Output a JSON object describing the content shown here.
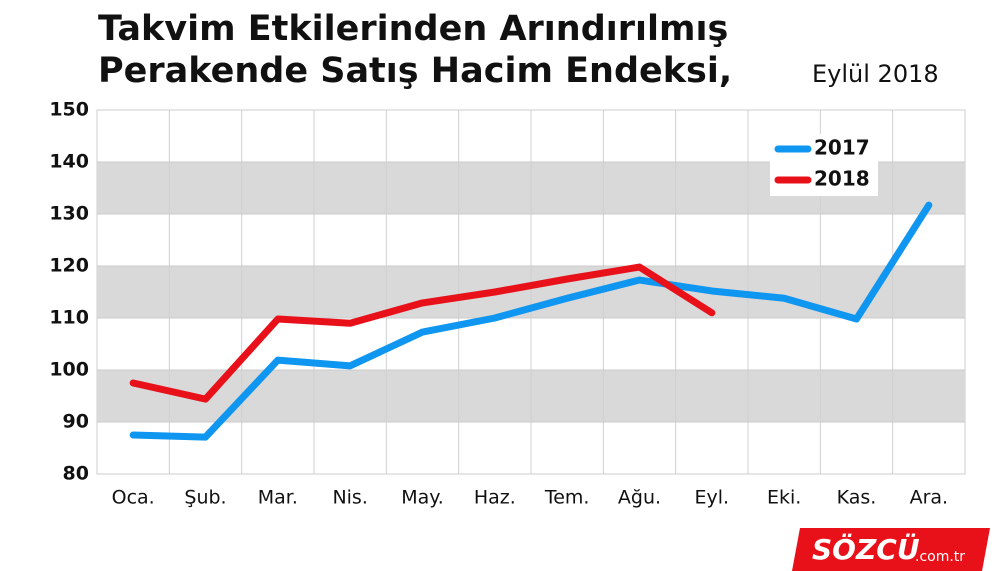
{
  "chart_data": {
    "type": "line",
    "title": [
      "Takvim Etkilerinden Arındırılmış",
      "Perakende Satış Hacim Endeksi,"
    ],
    "subtitle": "Eylül 2018",
    "categories": [
      "Oca.",
      "Şub.",
      "Mar.",
      "Nis.",
      "May.",
      "Haz.",
      "Tem.",
      "Ağu.",
      "Eyl.",
      "Eki.",
      "Kas.",
      "Ara."
    ],
    "series": [
      {
        "name": "2017",
        "color": "#0f96f0",
        "values": [
          87.5,
          87.1,
          101.9,
          100.8,
          107.3,
          110,
          113.8,
          117.3,
          115.2,
          113.8,
          109.8,
          131.7
        ]
      },
      {
        "name": "2018",
        "color": "#e8111a",
        "values": [
          97.5,
          94.4,
          109.8,
          109,
          112.9,
          115,
          117.5,
          119.8,
          111,
          null,
          null,
          null
        ]
      }
    ],
    "ylim": [
      80,
      150
    ],
    "yticks": [
      80,
      90,
      100,
      110,
      120,
      130,
      140,
      150
    ],
    "grid": true,
    "banded_grid": true,
    "legend": "upper right",
    "brand": "SÖZCÜ",
    "brand_suffix": ".com.tr"
  }
}
